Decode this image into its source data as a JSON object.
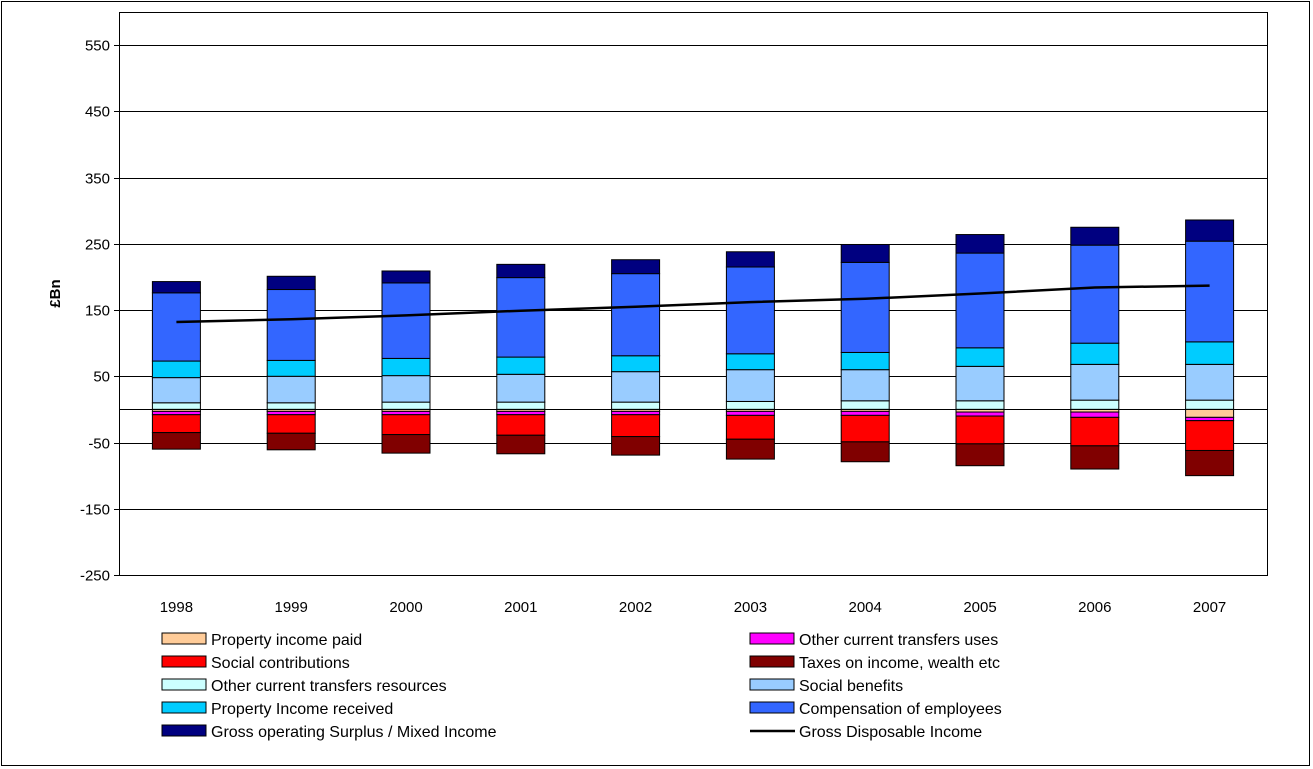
{
  "chart_data": {
    "type": "bar",
    "stacked": true,
    "title": "",
    "xlabel": "",
    "ylabel": "£Bn",
    "ylim": [
      -250,
      600
    ],
    "yticks": [
      550,
      450,
      350,
      250,
      150,
      50,
      -50,
      -150,
      -250
    ],
    "grid": true,
    "legend_position": "bottom",
    "categories": [
      "1998",
      "1999",
      "2000",
      "2001",
      "2002",
      "2003",
      "2004",
      "2005",
      "2006",
      "2007"
    ],
    "series": [
      {
        "name": "Property income paid",
        "kind": "negative",
        "color": "#FFCC99",
        "values": [
          -3,
          -3,
          -3,
          -3,
          -3,
          -3,
          -3,
          -4,
          -4,
          -12
        ]
      },
      {
        "name": "Other current transfers uses",
        "kind": "negative",
        "color": "#FF00FF",
        "values": [
          -5,
          -5,
          -5,
          -5,
          -5,
          -6,
          -6,
          -6,
          -8,
          -5
        ]
      },
      {
        "name": "Social contributions",
        "kind": "negative",
        "color": "#FF0000",
        "values": [
          -27,
          -28,
          -30,
          -31,
          -33,
          -36,
          -40,
          -42,
          -43,
          -45
        ]
      },
      {
        "name": "Taxes on income, wealth etc",
        "kind": "negative",
        "color": "#800000",
        "values": [
          -25,
          -25,
          -28,
          -28,
          -28,
          -30,
          -30,
          -33,
          -35,
          -38
        ]
      },
      {
        "name": "Other current transfers resources",
        "kind": "positive",
        "color": "#CCFFFF",
        "values": [
          10,
          10,
          11,
          11,
          11,
          12,
          13,
          13,
          14,
          14
        ]
      },
      {
        "name": "Social benefits",
        "kind": "positive",
        "color": "#99CCFF",
        "values": [
          38,
          40,
          40,
          42,
          46,
          48,
          47,
          52,
          54,
          54
        ]
      },
      {
        "name": "Property Income received",
        "kind": "positive",
        "color": "#00CCFF",
        "values": [
          25,
          24,
          26,
          26,
          24,
          24,
          26,
          28,
          32,
          34
        ]
      },
      {
        "name": "Compensation of employees",
        "kind": "positive",
        "color": "#3366FF",
        "values": [
          103,
          107,
          114,
          120,
          124,
          131,
          136,
          143,
          148,
          152
        ]
      },
      {
        "name": "Gross operating Surplus / Mixed Income",
        "kind": "positive",
        "color": "#000080",
        "values": [
          17,
          20,
          18,
          20,
          21,
          23,
          27,
          28,
          27,
          32
        ]
      }
    ],
    "line": {
      "name": "Gross Disposable Income",
      "color": "#000000",
      "values": [
        132,
        136,
        142,
        149,
        155,
        162,
        167,
        175,
        184,
        187
      ]
    }
  }
}
